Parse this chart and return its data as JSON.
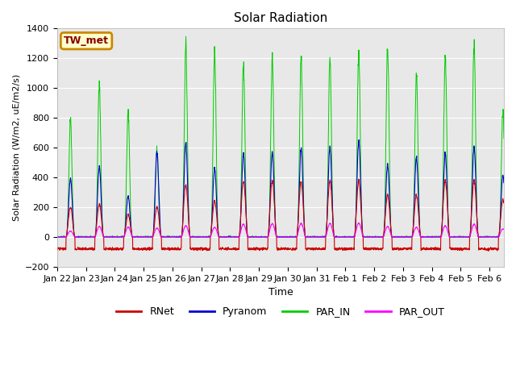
{
  "title": "Solar Radiation",
  "xlabel": "Time",
  "ylabel": "Solar Radiation (W/m2, uE/m2/s)",
  "ylim": [
    -200,
    1400
  ],
  "yticks": [
    -200,
    0,
    200,
    400,
    600,
    800,
    1000,
    1200,
    1400
  ],
  "date_labels": [
    "Jan 22",
    "Jan 23",
    "Jan 24",
    "Jan 25",
    "Jan 26",
    "Jan 27",
    "Jan 28",
    "Jan 29",
    "Jan 30",
    "Jan 31",
    "Feb 1",
    "Feb 2",
    "Feb 3",
    "Feb 4",
    "Feb 5",
    "Feb 6"
  ],
  "station_label": "TW_met",
  "colors": {
    "RNet": "#cc0000",
    "Pyranom": "#0000cc",
    "PAR_IN": "#00cc00",
    "PAR_OUT": "#ff00ff",
    "background": "#e8e8e8",
    "station_bg": "#ffffcc",
    "station_border": "#cc8800"
  },
  "legend_entries": [
    "RNet",
    "Pyranom",
    "PAR_IN",
    "PAR_OUT"
  ],
  "rnet_night": -80,
  "days": 15.5,
  "pts_per_day": 144
}
